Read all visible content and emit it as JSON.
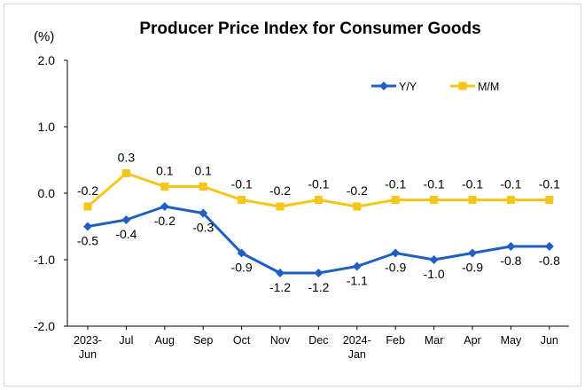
{
  "chart_data": {
    "type": "line",
    "title": "Producer Price Index for Consumer Goods",
    "unit": "(%)",
    "categories": [
      [
        "2023-",
        "Jun"
      ],
      [
        "Jul"
      ],
      [
        "Aug"
      ],
      [
        "Sep"
      ],
      [
        "Oct"
      ],
      [
        "Nov"
      ],
      [
        "Dec"
      ],
      [
        "2024-",
        "Jan"
      ],
      [
        "Feb"
      ],
      [
        "Mar"
      ],
      [
        "Apr"
      ],
      [
        "May"
      ],
      [
        "Jun"
      ]
    ],
    "series": [
      {
        "name": "Y/Y",
        "color": "#1f5fc4",
        "marker": "diamond",
        "values": [
          -0.5,
          -0.4,
          -0.2,
          -0.3,
          -0.9,
          -1.2,
          -1.2,
          -1.1,
          -0.9,
          -1.0,
          -0.9,
          -0.8,
          -0.8
        ],
        "labels": [
          "-0.5",
          "-0.4",
          "-0.2",
          "-0.3",
          "-0.9",
          "-1.2",
          "-1.2",
          "-1.1",
          "-0.9",
          "-1.0",
          "-0.9",
          "-0.8",
          "-0.8"
        ]
      },
      {
        "name": "M/M",
        "color": "#f5c518",
        "marker": "square",
        "values": [
          -0.2,
          0.3,
          0.1,
          0.1,
          -0.1,
          -0.2,
          -0.1,
          -0.2,
          -0.1,
          -0.1,
          -0.1,
          -0.1,
          -0.1
        ],
        "labels": [
          "-0.2",
          "0.3",
          "0.1",
          "0.1",
          "-0.1",
          "-0.2",
          "-0.1",
          "-0.2",
          "-0.1",
          "-0.1",
          "-0.1",
          "-0.1",
          "-0.1"
        ]
      }
    ],
    "yticks": [
      "2.0",
      "1.0",
      "0.0",
      "-1.0",
      "-2.0"
    ],
    "ylim": [
      -2.0,
      2.0
    ],
    "grid": false,
    "legend_position": "top-right"
  }
}
